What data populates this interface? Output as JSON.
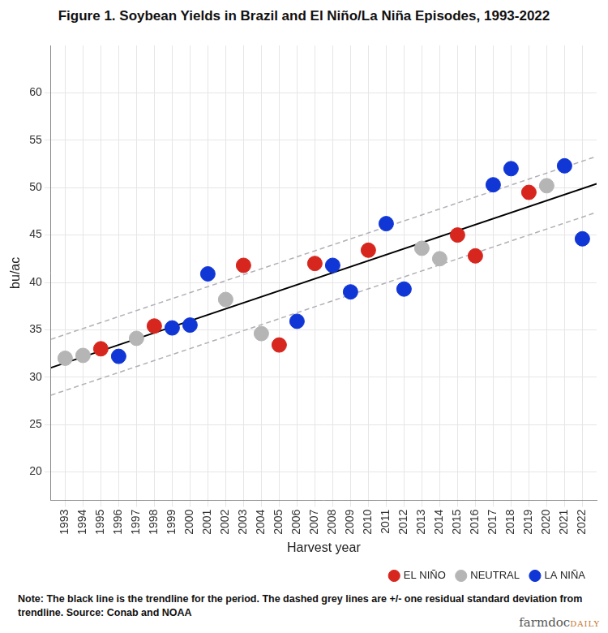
{
  "chart_data": {
    "type": "scatter",
    "title": "Figure 1. Soybean Yields in Brazil and El Niño/La Niña Episodes, 1993-2022",
    "x_label": "Harvest year",
    "y_label": "bu/ac",
    "xlim": [
      1992.2,
      2022.8
    ],
    "xticks": [
      1993,
      1994,
      1995,
      1996,
      1997,
      1998,
      1999,
      2000,
      2001,
      2002,
      2003,
      2004,
      2005,
      2006,
      2007,
      2008,
      2009,
      2010,
      2011,
      2012,
      2013,
      2014,
      2015,
      2016,
      2017,
      2018,
      2019,
      2020,
      2021,
      2022
    ],
    "ylim": [
      17,
      65
    ],
    "yticks": [
      20,
      25,
      30,
      35,
      40,
      45,
      50,
      55,
      60
    ],
    "grid": true,
    "legend": "bottom right",
    "series": [
      {
        "name": "EL NIÑO",
        "color": "#d7261e",
        "marker": "circle",
        "x": [
          1995,
          1998,
          2003,
          2005,
          2007,
          2010,
          2015,
          2016,
          2019
        ],
        "values": [
          33.0,
          35.4,
          41.8,
          33.4,
          42.0,
          43.4,
          45.0,
          42.8,
          49.5
        ]
      },
      {
        "name": "NEUTRAL",
        "color": "#b5b5b5",
        "marker": "circle",
        "x": [
          1993,
          1994,
          1997,
          2002,
          2004,
          2013,
          2014,
          2020
        ],
        "values": [
          32.0,
          32.3,
          34.1,
          38.2,
          34.6,
          43.6,
          42.5,
          50.2
        ]
      },
      {
        "name": "LA NIÑA",
        "color": "#1036d6",
        "marker": "circle",
        "x": [
          1996,
          1999,
          2000,
          2001,
          2006,
          2008,
          2009,
          2011,
          2012,
          2017,
          2018,
          2021,
          2022
        ],
        "values": [
          32.2,
          35.2,
          35.5,
          40.9,
          35.9,
          41.8,
          39.0,
          46.2,
          39.3,
          50.3,
          52.0,
          52.3,
          44.6
        ]
      }
    ],
    "trendline": {
      "x": [
        1992.2,
        2022.8
      ],
      "values": [
        31.0,
        50.4
      ],
      "color": "#000000",
      "line_style": "solid"
    },
    "band": {
      "x": [
        1992.2,
        2022.8
      ],
      "upper": [
        34.0,
        53.3
      ],
      "lower": [
        28.1,
        47.4
      ],
      "color": "#b0b0b8",
      "line_style": "dashed"
    },
    "note": "Note: The black line is the trendline for the period. The dashed grey lines are +/- one residual standard deviation from trendline. Source: Conab and NOAA",
    "logo": {
      "main": "farmdoc",
      "sub": "DAILY"
    }
  }
}
